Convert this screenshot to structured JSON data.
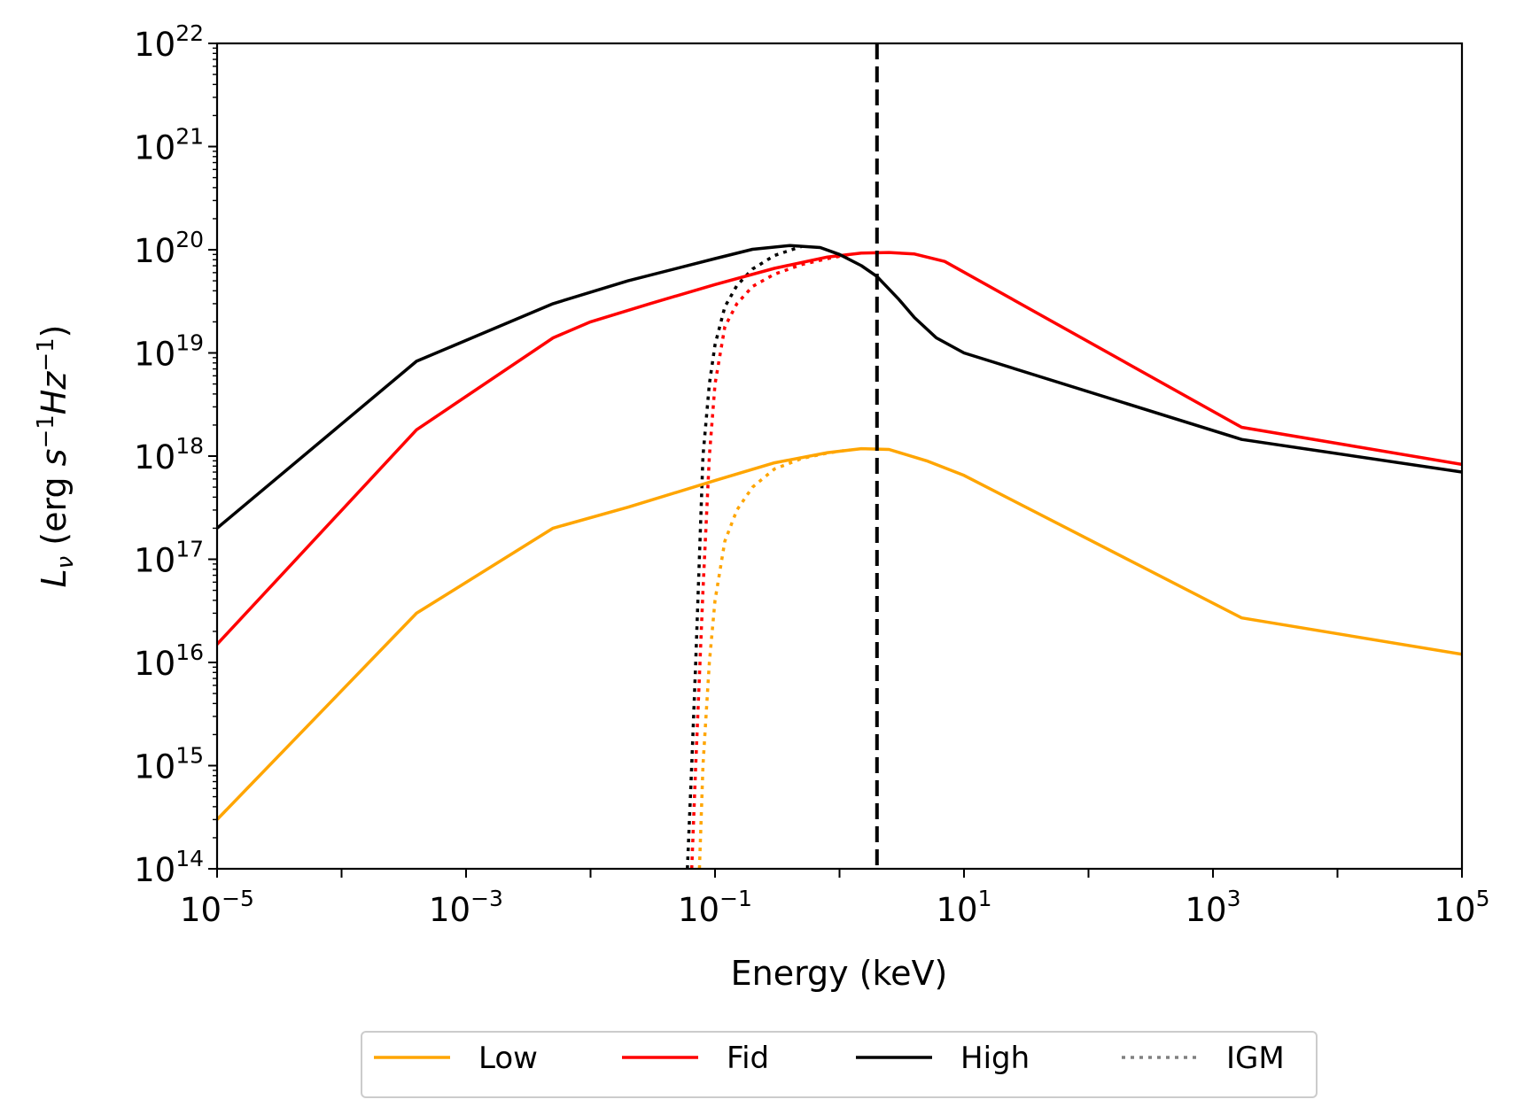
{
  "chart_data": {
    "type": "line",
    "title": "",
    "xlabel": "Energy (keV)",
    "ylabel": {
      "base": "L",
      "sub": "ν",
      "prefix": " (erg ",
      "s": "s",
      "s_exp": "−1",
      "hz": "Hz",
      "hz_exp": "−1",
      "suffix": ")"
    },
    "x_scale": "log",
    "y_scale": "log",
    "xlim": [
      1e-05,
      100000.0
    ],
    "ylim": [
      100000000000000.0,
      1e+22
    ],
    "x_ticks": [
      {
        "value": 1e-05,
        "base": "10",
        "exp": "−5"
      },
      {
        "value": 0.001,
        "base": "10",
        "exp": "−3"
      },
      {
        "value": 0.1,
        "base": "10",
        "exp": "−1"
      },
      {
        "value": 10.0,
        "base": "10",
        "exp": "1"
      },
      {
        "value": 1000.0,
        "base": "10",
        "exp": "3"
      },
      {
        "value": 100000.0,
        "base": "10",
        "exp": "5"
      }
    ],
    "y_ticks": [
      {
        "value": 100000000000000.0,
        "base": "10",
        "exp": "14"
      },
      {
        "value": 1000000000000000.0,
        "base": "10",
        "exp": "15"
      },
      {
        "value": 1e+16,
        "base": "10",
        "exp": "16"
      },
      {
        "value": 1e+17,
        "base": "10",
        "exp": "17"
      },
      {
        "value": 1e+18,
        "base": "10",
        "exp": "18"
      },
      {
        "value": 1e+19,
        "base": "10",
        "exp": "19"
      },
      {
        "value": 1e+20,
        "base": "10",
        "exp": "20"
      },
      {
        "value": 1e+21,
        "base": "10",
        "exp": "21"
      },
      {
        "value": 1e+22,
        "base": "10",
        "exp": "22"
      }
    ],
    "grid": false,
    "legend_position": "bottom-center-outside",
    "legend": [
      {
        "label": "Low",
        "color": "#ffa500",
        "style": "solid"
      },
      {
        "label": "Fid",
        "color": "#ff0000",
        "style": "solid"
      },
      {
        "label": "High",
        "color": "#000000",
        "style": "solid"
      },
      {
        "label": "IGM",
        "color": "#808080",
        "style": "dotted"
      }
    ],
    "vertical_line": {
      "x": 2.0,
      "color": "#000000",
      "style": "dashed"
    },
    "series": [
      {
        "name": "Low",
        "color": "#ffa500",
        "style": "solid",
        "x": [
          1e-05,
          0.0004,
          0.005,
          0.02,
          0.1,
          0.3,
          0.8,
          1.5,
          2.5,
          5,
          10,
          1700,
          100000
        ],
        "y": [
          300000000000000.0,
          3e+16,
          2e+17,
          3.2e+17,
          5.8e+17,
          8.6e+17,
          1.08e+18,
          1.18e+18,
          1.16e+18,
          9e+17,
          6.5e+17,
          2.7e+16,
          1.2e+16
        ]
      },
      {
        "name": "Fid",
        "color": "#ff0000",
        "style": "solid",
        "x": [
          1e-05,
          0.0004,
          0.005,
          0.01,
          0.03,
          0.1,
          0.3,
          0.8,
          1.5,
          2.5,
          4,
          7,
          1700,
          100000
        ],
        "y": [
          1.5e+16,
          1.8e+18,
          1.4e+19,
          2e+19,
          3e+19,
          4.6e+19,
          6.6e+19,
          8.5e+19,
          9.3e+19,
          9.4e+19,
          9.1e+19,
          7.7e+19,
          1.9e+18,
          8.3e+17
        ]
      },
      {
        "name": "High",
        "color": "#000000",
        "style": "solid",
        "x": [
          1e-05,
          0.0004,
          0.005,
          0.02,
          0.1,
          0.2,
          0.4,
          0.7,
          1,
          1.5,
          2,
          3,
          4,
          6,
          10,
          1700,
          100000
        ],
        "y": [
          2e+17,
          8.3e+18,
          3e+19,
          5e+19,
          8.2e+19,
          1.01e+20,
          1.1e+20,
          1.05e+20,
          9e+19,
          7e+19,
          5.5e+19,
          3.3e+19,
          2.2e+19,
          1.4e+19,
          1e+19,
          1.45e+18,
          7e+17
        ]
      },
      {
        "name": "Low IGM",
        "color": "#ffa500",
        "style": "dotted",
        "x": [
          0.075,
          0.08,
          0.09,
          0.1,
          0.12,
          0.15,
          0.2,
          0.3,
          0.5,
          0.8,
          1.2
        ],
        "y": [
          100000000000000.0,
          1000000000000000.0,
          1e+16,
          4e+16,
          1.5e+17,
          3e+17,
          5e+17,
          7.5e+17,
          9.5e+17,
          1.07e+18,
          1.15e+18
        ]
      },
      {
        "name": "Fid IGM",
        "color": "#ff0000",
        "style": "dotted",
        "x": [
          0.065,
          0.07,
          0.08,
          0.09,
          0.1,
          0.12,
          0.15,
          0.2,
          0.3,
          0.5,
          0.8,
          1.2
        ],
        "y": [
          100000000000000.0,
          1000000000000000.0,
          5e+16,
          1e+18,
          5e+18,
          1.8e+19,
          3e+19,
          4.4e+19,
          5.8e+19,
          7.2e+19,
          8.2e+19,
          9e+19
        ]
      },
      {
        "name": "High IGM",
        "color": "#000000",
        "style": "dotted",
        "x": [
          0.06,
          0.065,
          0.07,
          0.08,
          0.09,
          0.1,
          0.12,
          0.15,
          0.2,
          0.3,
          0.5
        ],
        "y": [
          100000000000000.0,
          1000000000000000.0,
          1e+16,
          1e+18,
          5e+18,
          1.2e+19,
          2.8e+19,
          4.5e+19,
          6.5e+19,
          8.8e+19,
          1.08e+20
        ]
      }
    ]
  }
}
